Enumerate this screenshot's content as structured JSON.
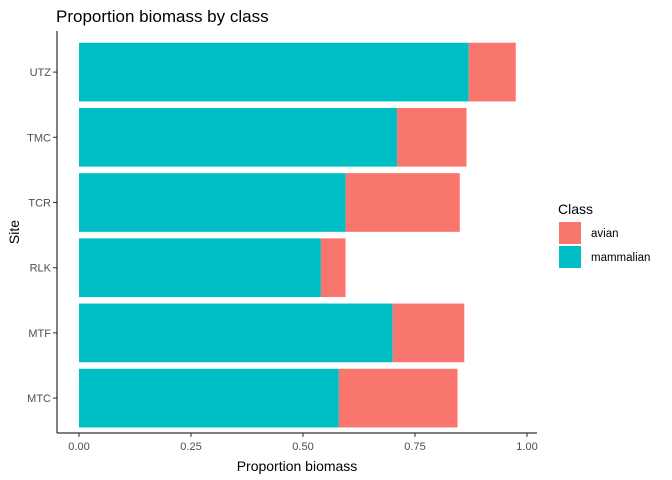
{
  "chart_data": {
    "type": "bar",
    "orientation": "horizontal",
    "stacked": true,
    "title": "Proportion biomass by class",
    "xlabel": "Proportion biomass",
    "ylabel": "Site",
    "categories": [
      "UTZ",
      "TMC",
      "TCR",
      "RLK",
      "MTF",
      "MTC"
    ],
    "series": [
      {
        "name": "mammalian",
        "color": "#00BFC4",
        "values": [
          0.87,
          0.71,
          0.595,
          0.54,
          0.7,
          0.58
        ]
      },
      {
        "name": "avian",
        "color": "#F8766D",
        "values": [
          0.105,
          0.155,
          0.255,
          0.055,
          0.16,
          0.265
        ]
      }
    ],
    "xlim": [
      0,
      1.0
    ],
    "xticks": [
      0,
      0.25,
      0.5,
      0.75,
      1.0
    ],
    "xtick_labels": [
      "0.00",
      "0.25",
      "0.50",
      "0.75",
      "1.00"
    ],
    "grid": false,
    "legend": {
      "title": "Class",
      "position": "right",
      "entries": [
        {
          "label": "avian",
          "color": "#F8766D"
        },
        {
          "label": "mammalian",
          "color": "#00BFC4"
        }
      ]
    }
  }
}
